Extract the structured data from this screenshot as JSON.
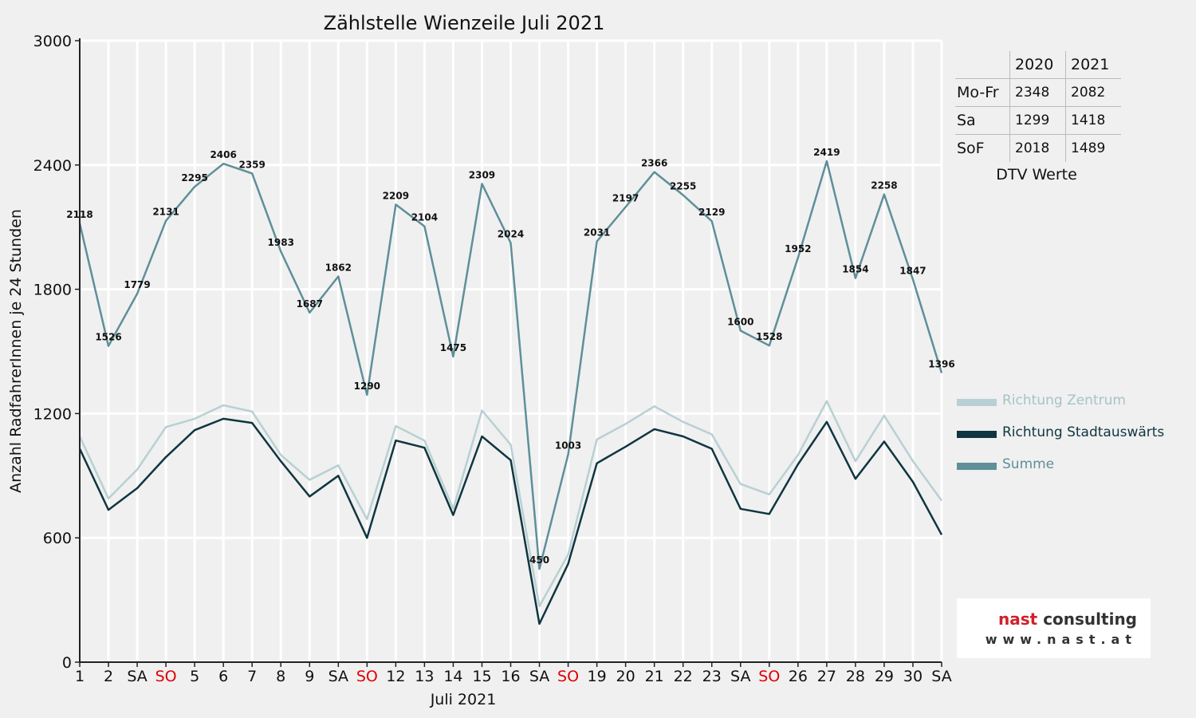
{
  "chart_data": {
    "type": "line",
    "title": "Zählstelle Wienzeile Juli 2021",
    "xlabel": "Juli 2021",
    "ylabel": "Anzahl RadfahrerInnen je 24 Stunden",
    "ylim": [
      0,
      3000
    ],
    "yticks": [
      0,
      600,
      1200,
      1800,
      2400,
      3000
    ],
    "grid": true,
    "legend_position": "right",
    "categories": [
      "1",
      "2",
      "SA",
      "SO",
      "5",
      "6",
      "7",
      "8",
      "9",
      "SA",
      "SO",
      "12",
      "13",
      "14",
      "15",
      "16",
      "SA",
      "SO",
      "19",
      "20",
      "21",
      "22",
      "23",
      "SA",
      "SO",
      "26",
      "27",
      "28",
      "29",
      "30",
      "SA"
    ],
    "category_colors": [
      "#111111",
      "#111111",
      "#111111",
      "#e00000",
      "#111111",
      "#111111",
      "#111111",
      "#111111",
      "#111111",
      "#111111",
      "#e00000",
      "#111111",
      "#111111",
      "#111111",
      "#111111",
      "#111111",
      "#111111",
      "#e00000",
      "#111111",
      "#111111",
      "#111111",
      "#111111",
      "#111111",
      "#111111",
      "#e00000",
      "#111111",
      "#111111",
      "#111111",
      "#111111",
      "#111111",
      "#111111"
    ],
    "series": [
      {
        "name": "Richtung Zentrum",
        "color": "#b8d0d3",
        "values": [
          1090,
          790,
          930,
          1135,
          1175,
          1240,
          1210,
          1000,
          880,
          950,
          690,
          1140,
          1070,
          740,
          1215,
          1050,
          270,
          520,
          1075,
          1150,
          1235,
          1160,
          1100,
          860,
          810,
          1000,
          1260,
          970,
          1190,
          970,
          780
        ]
      },
      {
        "name": "Richtung Stadtauswärts",
        "color": "#0f3640",
        "values": [
          1030,
          735,
          840,
          990,
          1120,
          1175,
          1155,
          970,
          800,
          900,
          600,
          1070,
          1035,
          710,
          1090,
          975,
          185,
          475,
          960,
          1040,
          1125,
          1090,
          1030,
          740,
          715,
          955,
          1160,
          885,
          1065,
          870,
          615
        ]
      },
      {
        "name": "Summe",
        "color": "#5f8f99",
        "values": [
          2118,
          1526,
          1779,
          2131,
          2295,
          2406,
          2359,
          1983,
          1687,
          1862,
          1290,
          2209,
          2104,
          1475,
          2309,
          2024,
          450,
          1003,
          2031,
          2197,
          2366,
          2255,
          2129,
          1600,
          1528,
          1952,
          2419,
          1854,
          2258,
          1847,
          1396
        ]
      }
    ]
  },
  "dtv_table": {
    "columns": [
      "2020",
      "2021"
    ],
    "rows": [
      {
        "label": "Mo-Fr",
        "v2020": "2348",
        "v2021": "2082"
      },
      {
        "label": "Sa",
        "v2020": "1299",
        "v2021": "1418"
      },
      {
        "label": "SoF",
        "v2020": "2018",
        "v2021": "1489"
      }
    ],
    "caption": "DTV Werte"
  },
  "logo": {
    "name_part1": "nast",
    "name_part2": " consulting",
    "url": "www.nast.at"
  }
}
